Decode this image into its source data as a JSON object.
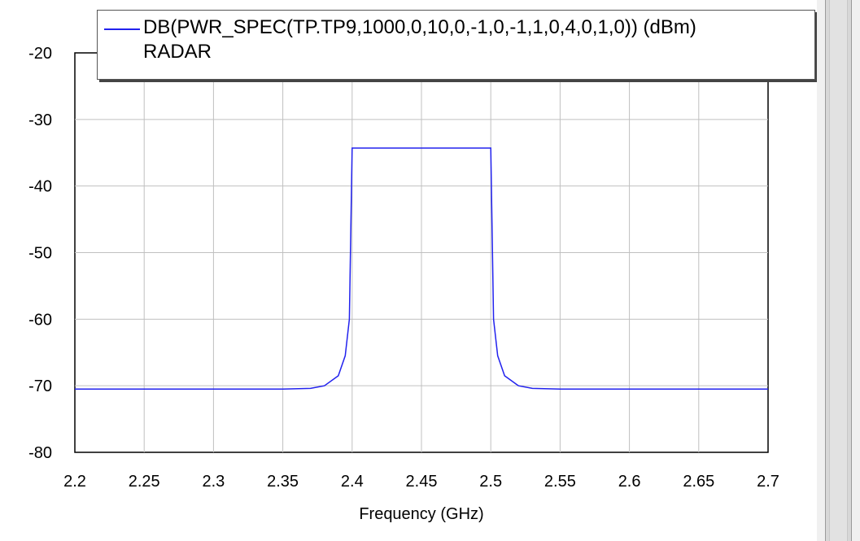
{
  "chart_data": {
    "type": "line",
    "title": "",
    "xlabel": "Frequency (GHz)",
    "ylabel": "",
    "xlim": [
      2.2,
      2.7
    ],
    "ylim": [
      -80,
      -20
    ],
    "xticks": [
      "2.2",
      "2.25",
      "2.3",
      "2.35",
      "2.4",
      "2.45",
      "2.5",
      "2.55",
      "2.6",
      "2.65",
      "2.7"
    ],
    "yticks": [
      "-20",
      "-30",
      "-40",
      "-50",
      "-60",
      "-70",
      "-80"
    ],
    "grid": true,
    "legend": {
      "position": "top",
      "lines": [
        "DB(PWR_SPEC(TP.TP9,1000,0,10,0,-1,0,-1,1,0,4,0,1,0)) (dBm)",
        "RADAR"
      ]
    },
    "series": [
      {
        "color": "#2222ee",
        "points": [
          [
            2.2,
            -70.5
          ],
          [
            2.25,
            -70.5
          ],
          [
            2.3,
            -70.5
          ],
          [
            2.35,
            -70.5
          ],
          [
            2.37,
            -70.4
          ],
          [
            2.38,
            -70.0
          ],
          [
            2.39,
            -68.5
          ],
          [
            2.395,
            -65.5
          ],
          [
            2.398,
            -60.0
          ],
          [
            2.4,
            -34.3
          ],
          [
            2.45,
            -34.3
          ],
          [
            2.5,
            -34.3
          ],
          [
            2.502,
            -60.0
          ],
          [
            2.505,
            -65.5
          ],
          [
            2.51,
            -68.5
          ],
          [
            2.52,
            -70.0
          ],
          [
            2.53,
            -70.4
          ],
          [
            2.55,
            -70.5
          ],
          [
            2.6,
            -70.5
          ],
          [
            2.65,
            -70.5
          ],
          [
            2.7,
            -70.5
          ]
        ]
      }
    ]
  }
}
